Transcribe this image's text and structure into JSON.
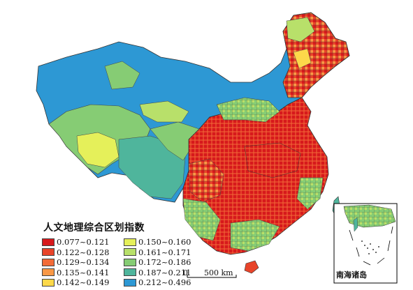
{
  "legend": {
    "title": "人文地理综合区划指数",
    "items": [
      {
        "label": "0.077~0.121",
        "color": "#d7191c"
      },
      {
        "label": "0.122~0.128",
        "color": "#e8442a"
      },
      {
        "label": "0.129~0.134",
        "color": "#f26b38"
      },
      {
        "label": "0.135~0.141",
        "color": "#f99846"
      },
      {
        "label": "0.142~0.149",
        "color": "#fdd84a"
      },
      {
        "label": "0.150~0.160",
        "color": "#e5f05a"
      },
      {
        "label": "0.161~0.171",
        "color": "#b8e06a"
      },
      {
        "label": "0.172~0.186",
        "color": "#86cc74"
      },
      {
        "label": "0.187~0.211",
        "color": "#4fb59c"
      },
      {
        "label": "0.212~0.496",
        "color": "#2d98d4"
      }
    ]
  },
  "scale_bar": {
    "zero": "0",
    "distance": "500 km"
  },
  "inset": {
    "label": "南海诸岛"
  }
}
